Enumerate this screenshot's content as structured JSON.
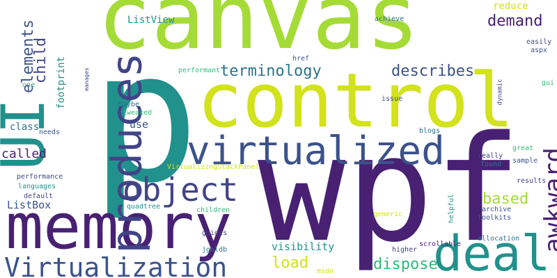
{
  "words": [
    "canvas",
    "p",
    "wpf",
    "control",
    "memory",
    "virtualized",
    "deal",
    "UI",
    "produces",
    "object",
    "Virtualization",
    "awkward",
    "terminology",
    "describes",
    "demand",
    "elements",
    "child",
    "footprint",
    "ListView",
    "reduce",
    "based",
    "load",
    "dispose",
    "visibility",
    "called",
    "class",
    "use",
    "ListBox",
    "performance",
    "languages",
    "default",
    "needs",
    "one",
    "manages",
    "Maybe",
    "tweaked",
    "VirtualizingStackPanel",
    "children",
    "quadtree",
    "guides",
    "jgoldb",
    "msdn",
    "higher",
    "scrollable",
    "allocation",
    "generic",
    "helpful",
    "archive",
    "toolkits",
    "results",
    "sample",
    "found",
    "really",
    "great",
    "blogs",
    "issue",
    "dynamic",
    "gui",
    "aspx",
    "easily",
    "achieve",
    "href",
    "performant"
  ],
  "colors": {
    "background": "#ffffff",
    "yellow_green": "#a5db36",
    "lime": "#d2e21b",
    "teal": "#21918c",
    "dark_purple": "#482173",
    "indigo": "#3b528b",
    "navy": "#414487",
    "sea_green": "#35b779",
    "steel_blue": "#2c728e"
  }
}
